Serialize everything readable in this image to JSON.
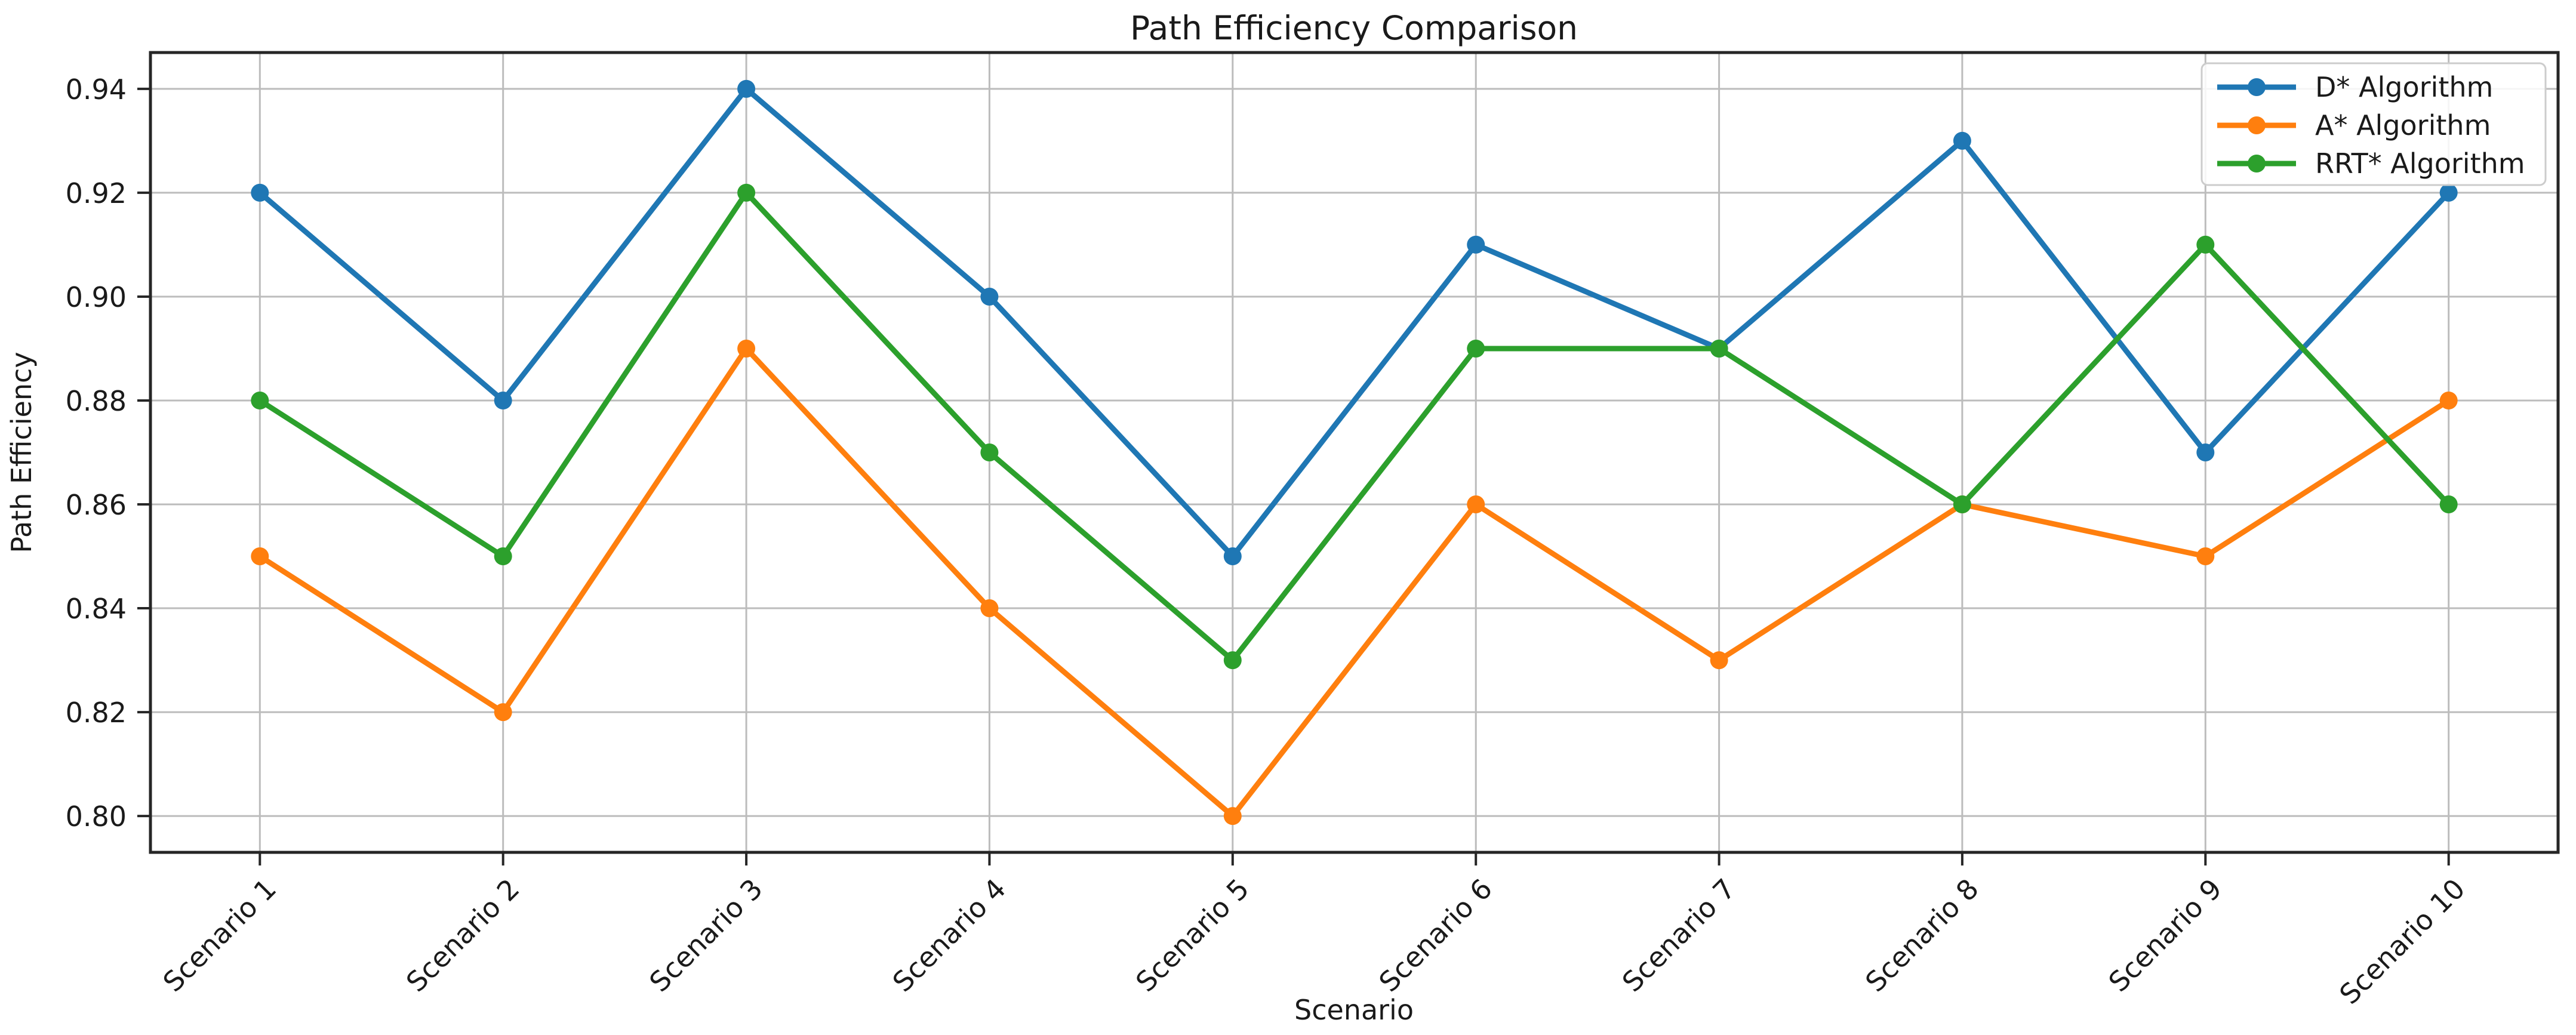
{
  "figure": {
    "background": "#ffffff",
    "text_color": "#1a1a1a",
    "grid_color": "#bcbcbc",
    "spine_color": "#262626",
    "legend_border_color": "#cccccc"
  },
  "chart_data": {
    "type": "line",
    "title": "Path Efficiency Comparison",
    "xlabel": "Scenario",
    "ylabel": "Path Efficiency",
    "categories": [
      "Scenario 1",
      "Scenario 2",
      "Scenario 3",
      "Scenario 4",
      "Scenario 5",
      "Scenario 6",
      "Scenario 7",
      "Scenario 8",
      "Scenario 9",
      "Scenario 10"
    ],
    "series": [
      {
        "name": "D* Algorithm",
        "color": "#1f77b4",
        "values": [
          0.92,
          0.88,
          0.94,
          0.9,
          0.85,
          0.91,
          0.89,
          0.93,
          0.87,
          0.92
        ]
      },
      {
        "name": "A* Algorithm",
        "color": "#ff7f0e",
        "values": [
          0.85,
          0.82,
          0.89,
          0.84,
          0.8,
          0.86,
          0.83,
          0.86,
          0.85,
          0.88
        ]
      },
      {
        "name": "RRT* Algorithm",
        "color": "#2ca02c",
        "values": [
          0.88,
          0.85,
          0.92,
          0.87,
          0.83,
          0.89,
          0.89,
          0.86,
          0.91,
          0.86
        ]
      }
    ],
    "y_ticks": [
      0.8,
      0.82,
      0.84,
      0.86,
      0.88,
      0.9,
      0.92,
      0.94
    ],
    "ylim": [
      0.793,
      0.947
    ],
    "grid": true,
    "legend_position": "upper right",
    "marker": "circle"
  }
}
